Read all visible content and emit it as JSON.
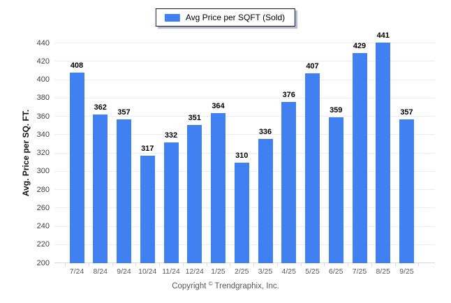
{
  "chart_data": {
    "type": "bar",
    "title": "",
    "legend": "Avg Price per SQFT (Sold)",
    "categories": [
      "7/24",
      "8/24",
      "9/24",
      "10/24",
      "11/24",
      "12/24",
      "1/25",
      "2/25",
      "3/25",
      "4/25",
      "5/25",
      "6/25",
      "7/25",
      "8/25",
      "9/25"
    ],
    "values": [
      408,
      362,
      357,
      317,
      332,
      351,
      364,
      310,
      336,
      376,
      407,
      359,
      429,
      441,
      357
    ],
    "xlabel": "",
    "ylabel": "Avg. Price per SQ. FT.",
    "ylim": [
      200,
      440
    ],
    "ytick_step": 20,
    "grid": true,
    "legend_position": "top-center",
    "value_labels": true,
    "bar_color": "#4080F0"
  },
  "colors": {
    "bar": "#4080F0",
    "gridline": "#ececec",
    "axis_line": "#d8d8d8",
    "tick_label": "#404040",
    "category_label": "#595959",
    "footer_text": "#555555"
  },
  "footer": {
    "prefix": "Copyright",
    "symbol": "©",
    "company": "Trendgraphix, Inc."
  }
}
